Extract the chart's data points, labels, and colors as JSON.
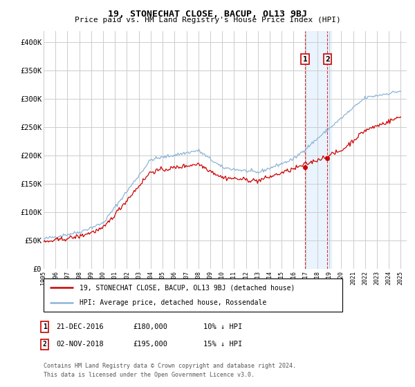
{
  "title": "19, STONECHAT CLOSE, BACUP, OL13 9BJ",
  "subtitle": "Price paid vs. HM Land Registry's House Price Index (HPI)",
  "ylabel_ticks": [
    "£0",
    "£50K",
    "£100K",
    "£150K",
    "£200K",
    "£250K",
    "£300K",
    "£350K",
    "£400K"
  ],
  "ytick_vals": [
    0,
    50000,
    100000,
    150000,
    200000,
    250000,
    300000,
    350000,
    400000
  ],
  "ylim": [
    0,
    420000
  ],
  "hpi_color": "#8ab4d8",
  "price_color": "#cc0000",
  "event1_x": 2016.96,
  "event1_y": 180000,
  "event1_date": "21-DEC-2016",
  "event1_price": "£180,000",
  "event1_label": "10% ↓ HPI",
  "event2_x": 2018.84,
  "event2_y": 195000,
  "event2_date": "02-NOV-2018",
  "event2_price": "£195,000",
  "event2_label": "15% ↓ HPI",
  "legend_label1": "19, STONECHAT CLOSE, BACUP, OL13 9BJ (detached house)",
  "legend_label2": "HPI: Average price, detached house, Rossendale",
  "footnote1": "Contains HM Land Registry data © Crown copyright and database right 2024.",
  "footnote2": "This data is licensed under the Open Government Licence v3.0.",
  "bg_color": "#ffffff",
  "grid_color": "#cccccc",
  "highlight_bg": "#ddeeff",
  "highlight_alpha": 0.6,
  "xlim_start": 1995,
  "xlim_end": 2025.5
}
